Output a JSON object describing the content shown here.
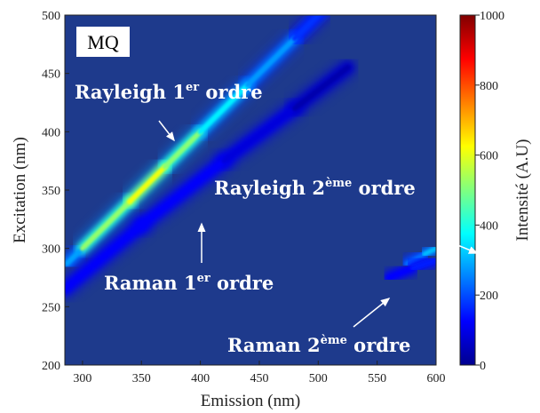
{
  "chart_data": {
    "type": "heatmap",
    "panel_label": "MQ",
    "xlabel": "Emission (nm)",
    "ylabel": "Excitation (nm)",
    "colorbar_label": "Intensité (A.U)",
    "xlim": [
      285,
      600
    ],
    "ylim": [
      200,
      500
    ],
    "clim": [
      0,
      1000
    ],
    "x_ticks": [
      "300",
      "350",
      "400",
      "450",
      "500",
      "550",
      "600"
    ],
    "y_ticks": [
      "200",
      "250",
      "300",
      "350",
      "400",
      "450",
      "500"
    ],
    "colorbar_ticks": [
      "0",
      "200",
      "400",
      "600",
      "800",
      "1000"
    ],
    "x_tick_values": [
      300,
      350,
      400,
      450,
      500,
      550,
      600
    ],
    "y_tick_values": [
      200,
      250,
      300,
      350,
      400,
      450,
      500
    ],
    "colorbar_tick_values": [
      0,
      200,
      400,
      600,
      800,
      1000
    ],
    "background_color": "#1e3a8c",
    "bands": [
      {
        "name_main": "Rayleigh 1",
        "sup": "er",
        "name_rest": " ordre",
        "points": [
          [
            287,
            287,
            150
          ],
          [
            300,
            300,
            420
          ],
          [
            340,
            340,
            620
          ],
          [
            370,
            370,
            600
          ],
          [
            400,
            400,
            420
          ],
          [
            440,
            440,
            300
          ],
          [
            480,
            480,
            250
          ],
          [
            505,
            505,
            100
          ]
        ]
      },
      {
        "name_main": "Raman 1",
        "sup": "er",
        "name_rest": " ordre",
        "points": [
          [
            285,
            265,
            110
          ],
          [
            350,
            320,
            130
          ],
          [
            420,
            375,
            110
          ],
          [
            480,
            420,
            70
          ],
          [
            525,
            455,
            20
          ]
        ]
      },
      {
        "name_main": "Rayleigh 2",
        "sup": "ème",
        "name_rest": " ordre",
        "points": [
          [
            575,
            287,
            160
          ],
          [
            590,
            295,
            300
          ],
          [
            600,
            300,
            320
          ]
        ]
      },
      {
        "name_main": "Raman 2",
        "sup": "ème",
        "name_rest": " ordre",
        "points": [
          [
            560,
            275,
            110
          ],
          [
            580,
            283,
            150
          ],
          [
            600,
            290,
            150
          ]
        ]
      }
    ],
    "annotations": [
      {
        "main": "Rayleigh 1",
        "sup": "er",
        "rest": " ordre"
      },
      {
        "main": "Raman 1",
        "sup": "er",
        "rest": " ordre"
      },
      {
        "main": "Rayleigh 2",
        "sup": "ème",
        "rest": " ordre"
      },
      {
        "main": "Raman 2",
        "sup": "ème",
        "rest": " ordre"
      }
    ]
  }
}
